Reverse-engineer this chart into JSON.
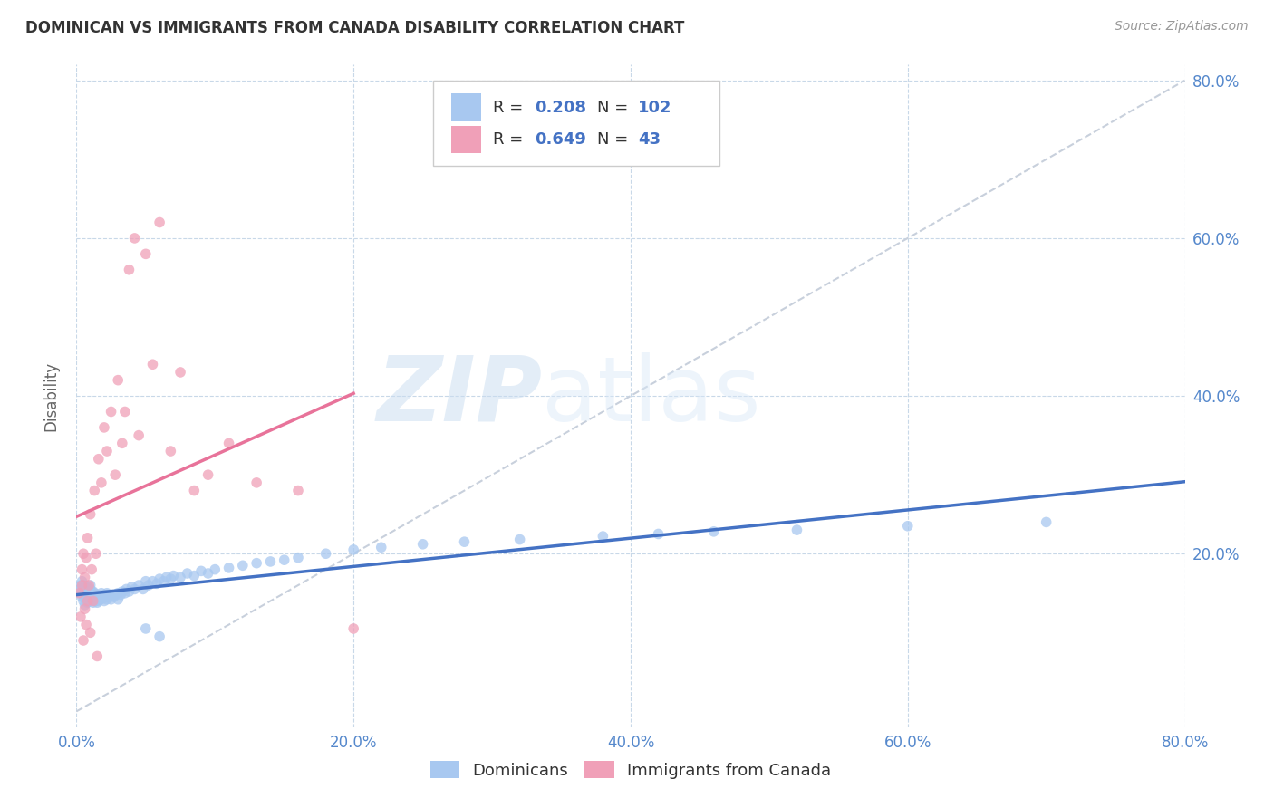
{
  "title": "DOMINICAN VS IMMIGRANTS FROM CANADA DISABILITY CORRELATION CHART",
  "source": "Source: ZipAtlas.com",
  "ylabel": "Disability",
  "xlim": [
    0.0,
    0.8
  ],
  "ylim": [
    -0.02,
    0.82
  ],
  "xtick_labels": [
    "0.0%",
    "20.0%",
    "40.0%",
    "60.0%",
    "80.0%"
  ],
  "xtick_vals": [
    0.0,
    0.2,
    0.4,
    0.6,
    0.8
  ],
  "ytick_labels": [
    "20.0%",
    "40.0%",
    "60.0%",
    "80.0%"
  ],
  "ytick_vals": [
    0.2,
    0.4,
    0.6,
    0.8
  ],
  "legend_R1": "0.208",
  "legend_N1": "102",
  "legend_R2": "0.649",
  "legend_N2": "43",
  "color_blue": "#A8C8F0",
  "color_pink": "#F0A0B8",
  "color_blue_line": "#4472C4",
  "color_pink_line": "#E8739A",
  "color_blue_text": "#4472C4",
  "watermark_zip": "ZIP",
  "watermark_atlas": "atlas",
  "dominicans_x": [
    0.002,
    0.003,
    0.003,
    0.004,
    0.004,
    0.005,
    0.005,
    0.005,
    0.005,
    0.006,
    0.006,
    0.006,
    0.006,
    0.007,
    0.007,
    0.007,
    0.008,
    0.008,
    0.008,
    0.008,
    0.009,
    0.009,
    0.009,
    0.01,
    0.01,
    0.01,
    0.01,
    0.01,
    0.011,
    0.011,
    0.012,
    0.012,
    0.012,
    0.013,
    0.013,
    0.014,
    0.014,
    0.015,
    0.015,
    0.016,
    0.016,
    0.017,
    0.018,
    0.018,
    0.019,
    0.02,
    0.02,
    0.021,
    0.022,
    0.022,
    0.023,
    0.024,
    0.025,
    0.026,
    0.027,
    0.028,
    0.03,
    0.03,
    0.032,
    0.033,
    0.035,
    0.036,
    0.038,
    0.04,
    0.042,
    0.045,
    0.048,
    0.05,
    0.052,
    0.055,
    0.058,
    0.06,
    0.063,
    0.065,
    0.068,
    0.07,
    0.075,
    0.08,
    0.085,
    0.09,
    0.095,
    0.1,
    0.11,
    0.12,
    0.13,
    0.14,
    0.15,
    0.16,
    0.18,
    0.2,
    0.22,
    0.25,
    0.28,
    0.32,
    0.38,
    0.42,
    0.46,
    0.52,
    0.6,
    0.7,
    0.05,
    0.06
  ],
  "dominicans_y": [
    0.155,
    0.15,
    0.16,
    0.145,
    0.165,
    0.14,
    0.15,
    0.155,
    0.16,
    0.135,
    0.145,
    0.15,
    0.158,
    0.14,
    0.148,
    0.155,
    0.138,
    0.145,
    0.152,
    0.158,
    0.142,
    0.148,
    0.155,
    0.14,
    0.146,
    0.15,
    0.155,
    0.16,
    0.143,
    0.15,
    0.138,
    0.145,
    0.152,
    0.142,
    0.15,
    0.14,
    0.148,
    0.138,
    0.145,
    0.14,
    0.148,
    0.142,
    0.145,
    0.15,
    0.143,
    0.14,
    0.148,
    0.145,
    0.142,
    0.15,
    0.148,
    0.145,
    0.142,
    0.148,
    0.145,
    0.148,
    0.142,
    0.15,
    0.148,
    0.152,
    0.15,
    0.155,
    0.152,
    0.158,
    0.155,
    0.16,
    0.155,
    0.165,
    0.16,
    0.165,
    0.162,
    0.168,
    0.165,
    0.17,
    0.168,
    0.172,
    0.17,
    0.175,
    0.172,
    0.178,
    0.175,
    0.18,
    0.182,
    0.185,
    0.188,
    0.19,
    0.192,
    0.195,
    0.2,
    0.205,
    0.208,
    0.212,
    0.215,
    0.218,
    0.222,
    0.225,
    0.228,
    0.23,
    0.235,
    0.24,
    0.105,
    0.095
  ],
  "canada_x": [
    0.002,
    0.003,
    0.004,
    0.004,
    0.005,
    0.005,
    0.006,
    0.006,
    0.007,
    0.007,
    0.008,
    0.008,
    0.009,
    0.01,
    0.01,
    0.011,
    0.012,
    0.013,
    0.014,
    0.015,
    0.016,
    0.018,
    0.02,
    0.022,
    0.025,
    0.028,
    0.03,
    0.033,
    0.035,
    0.038,
    0.042,
    0.045,
    0.05,
    0.055,
    0.06,
    0.068,
    0.075,
    0.085,
    0.095,
    0.11,
    0.13,
    0.16,
    0.2
  ],
  "canada_y": [
    0.15,
    0.12,
    0.16,
    0.18,
    0.09,
    0.2,
    0.13,
    0.17,
    0.11,
    0.195,
    0.14,
    0.22,
    0.16,
    0.1,
    0.25,
    0.18,
    0.14,
    0.28,
    0.2,
    0.07,
    0.32,
    0.29,
    0.36,
    0.33,
    0.38,
    0.3,
    0.42,
    0.34,
    0.38,
    0.56,
    0.6,
    0.35,
    0.58,
    0.44,
    0.62,
    0.33,
    0.43,
    0.28,
    0.3,
    0.34,
    0.29,
    0.28,
    0.105
  ]
}
